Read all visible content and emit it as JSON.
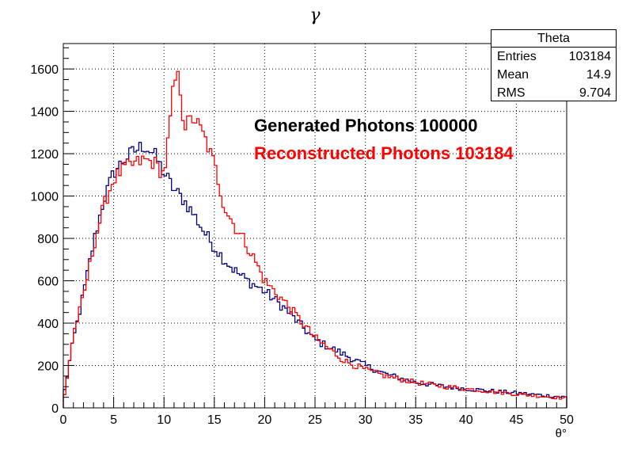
{
  "chart_data": {
    "type": "line",
    "title": "γ",
    "xlabel": "θ°",
    "ylabel": "",
    "xlim": [
      0,
      50
    ],
    "ylim": [
      0,
      1720
    ],
    "x_ticks": [
      0,
      5,
      10,
      15,
      20,
      25,
      30,
      35,
      40,
      45,
      50
    ],
    "y_ticks": [
      0,
      200,
      400,
      600,
      800,
      1000,
      1200,
      1400,
      1600
    ],
    "grid": true,
    "bin_width": 0.25,
    "colors": {
      "generated": "#000080",
      "reconstructed": "#ff0000"
    },
    "annotations": [
      {
        "text": "Generated Photons 100000",
        "color": "#000000"
      },
      {
        "text": "Reconstructed Photons 103184",
        "color": "#ff0000"
      }
    ],
    "stats_box": {
      "title": "Theta",
      "rows": [
        {
          "label": "Entries",
          "value": "103184"
        },
        {
          "label": "Mean",
          "value": "14.9"
        },
        {
          "label": "RMS",
          "value": "9.704"
        }
      ]
    },
    "series": [
      {
        "key": "generated",
        "x": [
          0,
          1,
          2,
          3,
          4,
          5,
          6,
          7,
          8,
          9,
          10,
          11,
          12,
          13,
          14,
          15,
          16,
          17,
          18,
          19,
          20,
          22,
          25,
          28,
          30,
          32,
          35,
          38,
          40,
          45,
          50
        ],
        "y": [
          50,
          320,
          540,
          780,
          980,
          1110,
          1170,
          1210,
          1240,
          1200,
          1110,
          1030,
          980,
          910,
          830,
          760,
          700,
          650,
          610,
          580,
          550,
          470,
          320,
          250,
          200,
          160,
          120,
          100,
          90,
          70,
          50
        ]
      },
      {
        "key": "reconstructed",
        "x": [
          0,
          1,
          2,
          3,
          4,
          5,
          6,
          7,
          8,
          9,
          10,
          10.5,
          11,
          11.5,
          12,
          13,
          14,
          15,
          16,
          17,
          18,
          19,
          20,
          22,
          25,
          28,
          30,
          32,
          35,
          38,
          40,
          45,
          50
        ],
        "y": [
          20,
          350,
          520,
          760,
          950,
          1080,
          1130,
          1150,
          1170,
          1160,
          1100,
          1300,
          1540,
          1560,
          1330,
          1370,
          1280,
          1150,
          950,
          860,
          790,
          700,
          600,
          500,
          330,
          220,
          180,
          150,
          120,
          100,
          90,
          65,
          45
        ]
      }
    ]
  }
}
